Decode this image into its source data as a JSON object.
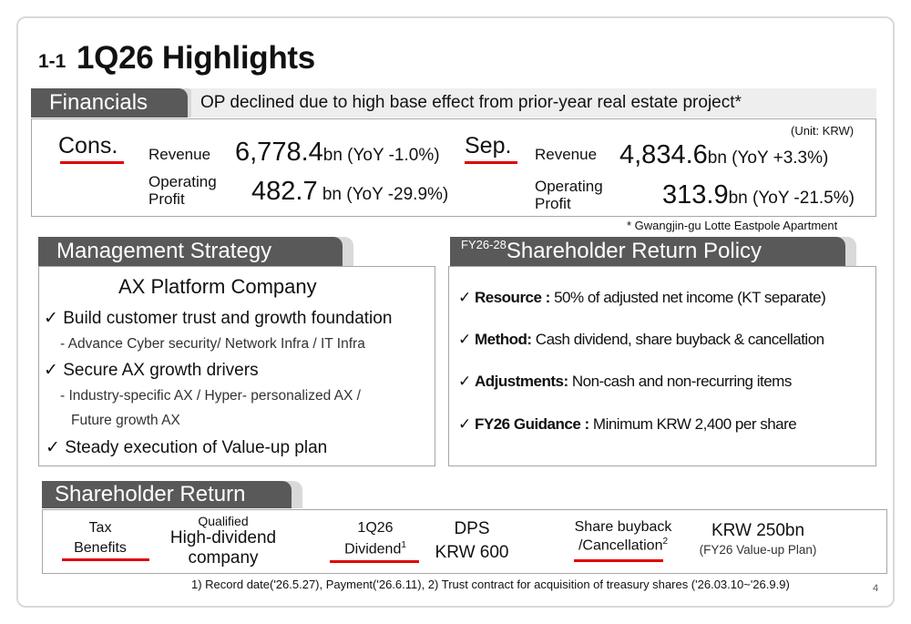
{
  "title": {
    "number": "1-1",
    "text": "1Q26 Highlights"
  },
  "financials": {
    "tab": "Financials",
    "banner": "OP declined due to high base effect  from  prior-year real estate project*",
    "unit": "(Unit: KRW)",
    "footnote": "* Gwangjin-gu Lotte Eastpole Apartment",
    "cons": {
      "label": "Cons.",
      "revenue_label": "Revenue",
      "revenue_value": "6,778.4",
      "revenue_suffix": "bn (YoY -1.0%)",
      "op_label_1": "Operating",
      "op_label_2": "Profit",
      "op_value": "482.7",
      "op_suffix": " bn (YoY -29.9%)"
    },
    "sep": {
      "label": "Sep.",
      "revenue_label": "Revenue",
      "revenue_value": "4,834.6",
      "revenue_suffix": "bn (YoY +3.3%)",
      "op_label_1": "Operating",
      "op_label_2": "Profit",
      "op_value": "313.9",
      "op_suffix": "bn (YoY -21.5%)"
    }
  },
  "management": {
    "tab": "Management Strategy",
    "heading": "AX Platform Company",
    "check": "✓",
    "item1": "Build customer trust and growth foundation",
    "item1_sub": "- Advance Cyber security/ Network Infra / IT Infra",
    "item2": "Secure AX growth drivers",
    "item2_sub1": "- Industry-specific AX / Hyper- personalized AX /",
    "item2_sub2": "Future growth AX",
    "item3": "Steady execution of  Value-up plan"
  },
  "policy": {
    "tab_sup": "FY26-28",
    "tab": "Shareholder Return Policy",
    "check": "✓",
    "items": [
      {
        "label": "Resource :",
        "text": " 50% of adjusted net income (KT separate)"
      },
      {
        "label": "Method:",
        "text": " Cash dividend, share buyback & cancellation"
      },
      {
        "label": "Adjustments:",
        "text": " Non-cash and non-recurring items"
      },
      {
        "label": "FY26  Guidance :",
        "text": " Minimum KRW 2,400 per share"
      }
    ]
  },
  "shareholder_return": {
    "tab": "Shareholder Return",
    "tax_1": "Tax",
    "tax_2": "Benefits",
    "qual_1": "Qualified",
    "qual_2": "High-dividend",
    "qual_3": "company",
    "div_1": "1Q26",
    "div_2": "Dividend",
    "div_sup": "1",
    "dps_1": "DPS",
    "dps_2": "KRW 600",
    "buyback_1": "Share buyback",
    "buyback_2": "/Cancellation",
    "buyback_sup": "2",
    "buyback_value": "KRW 250bn",
    "buyback_note": "(FY26 Value-up Plan)"
  },
  "footnote": "1) Record date('26.5.27), Payment('26.6.11), 2) Trust contract for acquisition of treasury shares ('26.03.10~'26.9.9)",
  "page_number": "4",
  "colors": {
    "tab": "#595959",
    "accent_red": "#e00000",
    "banner": "#eeeeee",
    "border": "#a6a6a6"
  }
}
